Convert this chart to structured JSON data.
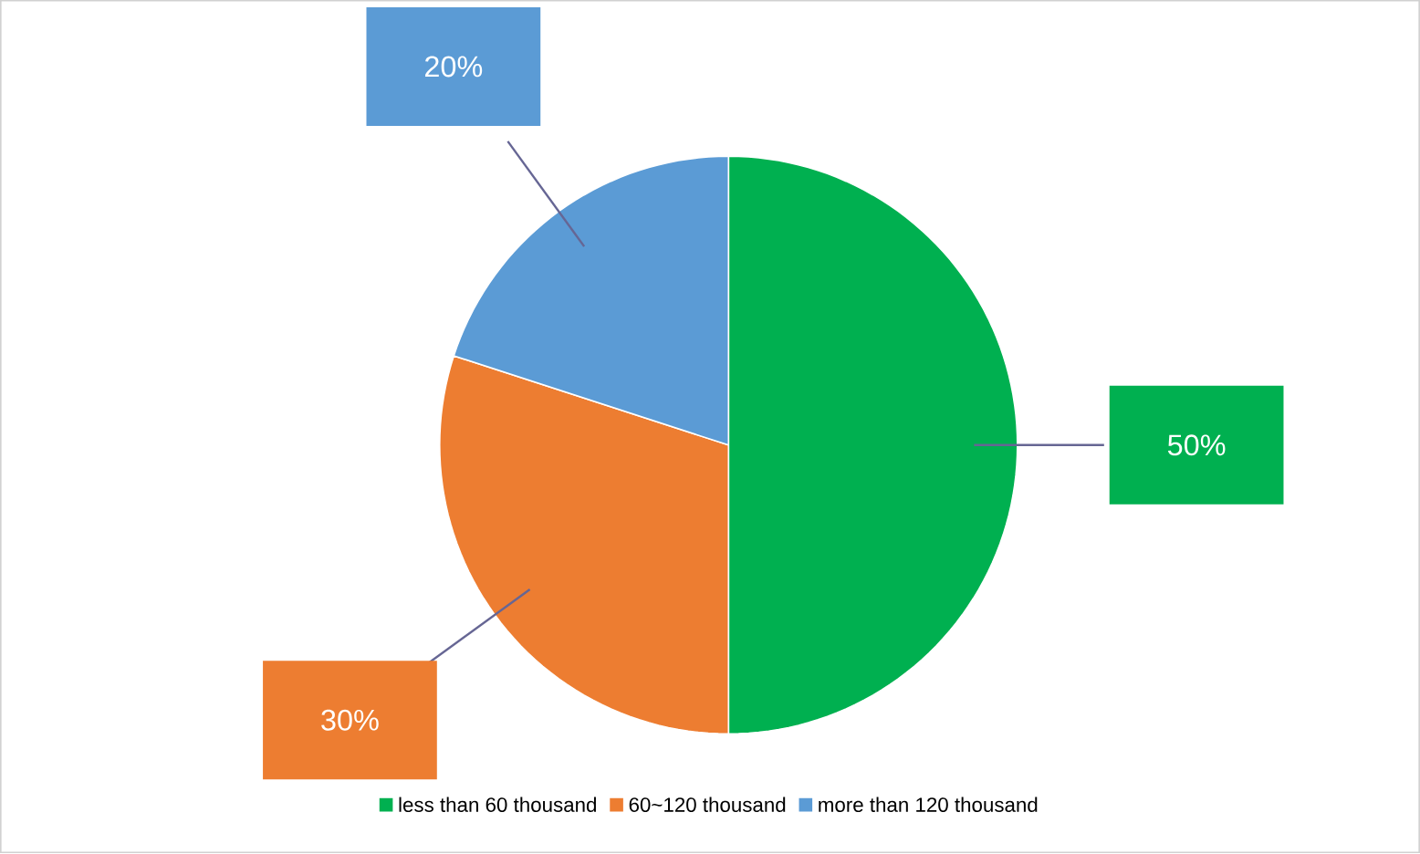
{
  "chart_data": {
    "type": "pie",
    "categories": [
      "less than 60 thousand",
      "60~120 thousand",
      "more than 120 thousand"
    ],
    "values": [
      50,
      30,
      20
    ],
    "colors": [
      "#00b050",
      "#ed7d31",
      "#5b9bd5"
    ],
    "value_labels": [
      "50%",
      "30%",
      "20%"
    ],
    "legend": "bottom"
  }
}
